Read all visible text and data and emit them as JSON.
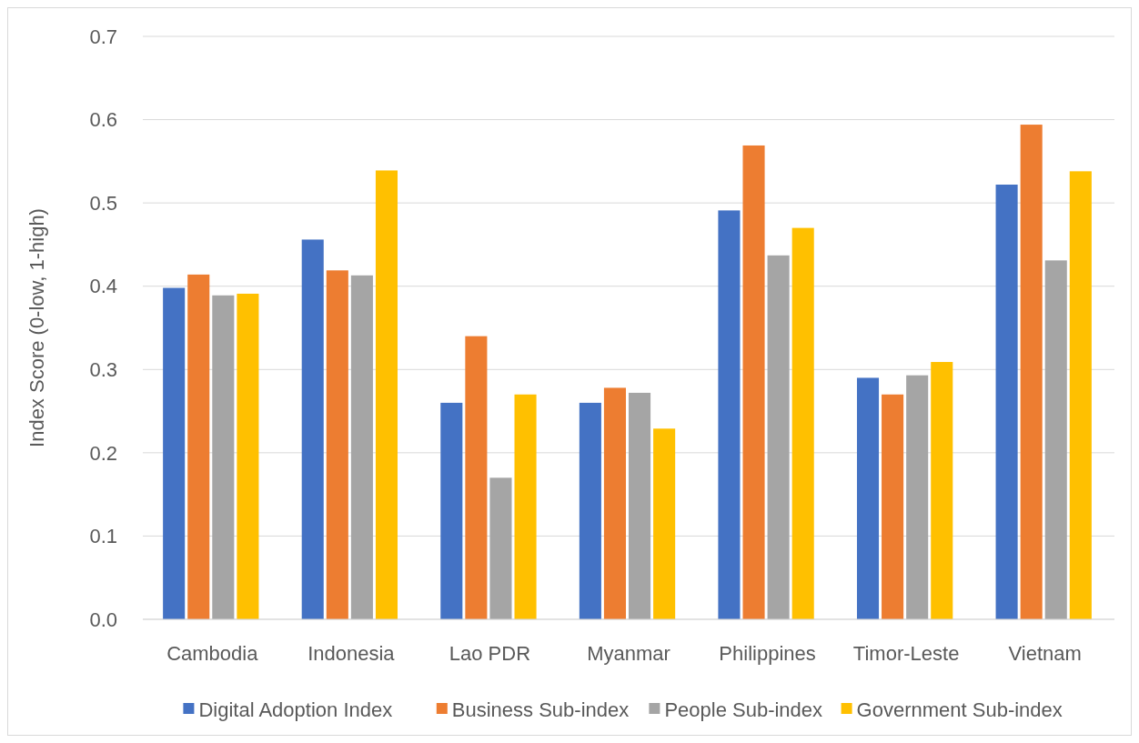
{
  "chart_data": {
    "type": "bar",
    "ylabel": "Index Score (0-low, 1-high)",
    "categories": [
      "Cambodia",
      "Indonesia",
      "Lao PDR",
      "Myanmar",
      "Philippines",
      "Timor-Leste",
      "Vietnam"
    ],
    "series": [
      {
        "name": "Digital Adoption Index",
        "color": "#4472c4",
        "values": [
          0.398,
          0.456,
          0.26,
          0.26,
          0.491,
          0.29,
          0.522
        ]
      },
      {
        "name": "Business Sub-index",
        "color": "#ed7d31",
        "values": [
          0.414,
          0.419,
          0.34,
          0.278,
          0.569,
          0.27,
          0.594
        ]
      },
      {
        "name": "People Sub-index",
        "color": "#a5a5a5",
        "values": [
          0.389,
          0.413,
          0.17,
          0.272,
          0.437,
          0.293,
          0.431
        ]
      },
      {
        "name": "Government Sub-index",
        "color": "#ffc000",
        "values": [
          0.391,
          0.539,
          0.27,
          0.229,
          0.47,
          0.309,
          0.538
        ]
      }
    ],
    "ylim": [
      0,
      0.7
    ],
    "yticks": [
      {
        "value": 0,
        "label": "0.0"
      },
      0.1,
      0.2,
      0.3,
      0.4,
      0.5,
      0.6,
      0.7
    ],
    "grid": "y",
    "legend": "bottom"
  }
}
